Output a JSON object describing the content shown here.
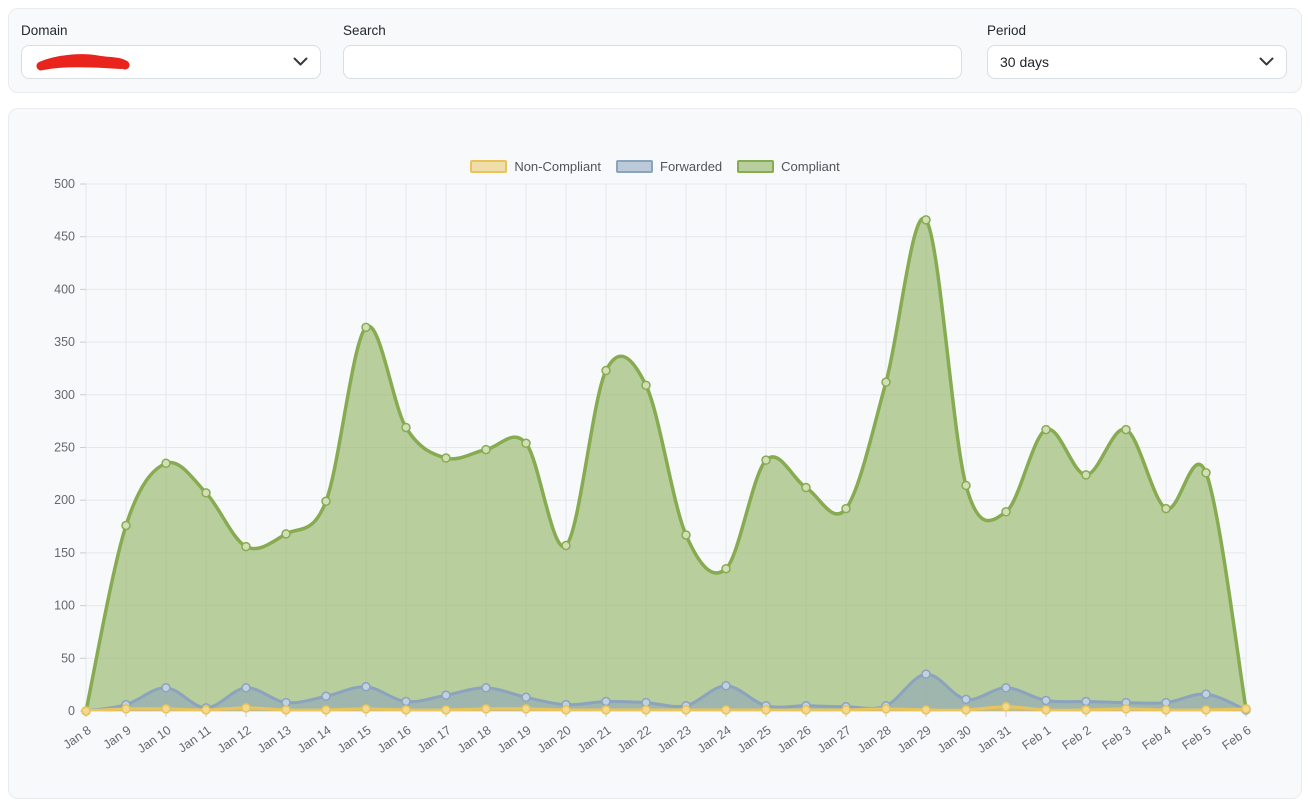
{
  "filters": {
    "domain": {
      "label": "Domain",
      "value_redacted": true
    },
    "search": {
      "label": "Search",
      "value": "",
      "placeholder": ""
    },
    "period": {
      "label": "Period",
      "value": "30 days"
    }
  },
  "colors": {
    "scribble_red": "#e8241c",
    "grid": "#e6e9ec",
    "axis": "#c9ced3",
    "tick_label": "#64696e",
    "card_bg": "#f7f9fa"
  },
  "chart_data": {
    "type": "area",
    "subtype": "spline-area-overlaid",
    "title": "",
    "xlabel": "",
    "ylabel": "",
    "ylim": [
      0,
      500
    ],
    "y_tick_step": 50,
    "grid": true,
    "legend_position": "top",
    "x": [
      "Jan 8",
      "Jan 9",
      "Jan 10",
      "Jan 11",
      "Jan 12",
      "Jan 13",
      "Jan 14",
      "Jan 15",
      "Jan 16",
      "Jan 17",
      "Jan 18",
      "Jan 19",
      "Jan 20",
      "Jan 21",
      "Jan 22",
      "Jan 23",
      "Jan 24",
      "Jan 25",
      "Jan 26",
      "Jan 27",
      "Jan 28",
      "Jan 29",
      "Jan 30",
      "Jan 31",
      "Feb 1",
      "Feb 2",
      "Feb 3",
      "Feb 4",
      "Feb 5",
      "Feb 6"
    ],
    "series": [
      {
        "name": "Non-Compliant",
        "line": "#e9c45a",
        "fill": "rgba(233,196,90,0.5)",
        "marker": "#f3d88e",
        "values": [
          0,
          2,
          2,
          1,
          3,
          1,
          1,
          2,
          1,
          1,
          2,
          2,
          1,
          1,
          1,
          1,
          1,
          1,
          1,
          1,
          2,
          1,
          1,
          4,
          1,
          1,
          2,
          1,
          1,
          2
        ]
      },
      {
        "name": "Forwarded",
        "line": "#8ba3bd",
        "fill": "rgba(139,163,189,0.55)",
        "marker": "#c2d1e2",
        "values": [
          0,
          6,
          22,
          3,
          22,
          8,
          14,
          23,
          9,
          15,
          22,
          13,
          6,
          9,
          8,
          5,
          24,
          5,
          5,
          4,
          5,
          35,
          11,
          22,
          10,
          9,
          8,
          8,
          16,
          1
        ]
      },
      {
        "name": "Compliant",
        "line": "#87ab51",
        "fill": "rgba(135,171,81,0.55)",
        "marker": "#d2dfb6",
        "values": [
          0,
          176,
          235,
          207,
          156,
          168,
          199,
          364,
          269,
          240,
          248,
          254,
          157,
          323,
          309,
          167,
          135,
          238,
          212,
          192,
          312,
          466,
          214,
          189,
          267,
          224,
          267,
          192,
          226,
          2
        ]
      }
    ]
  }
}
